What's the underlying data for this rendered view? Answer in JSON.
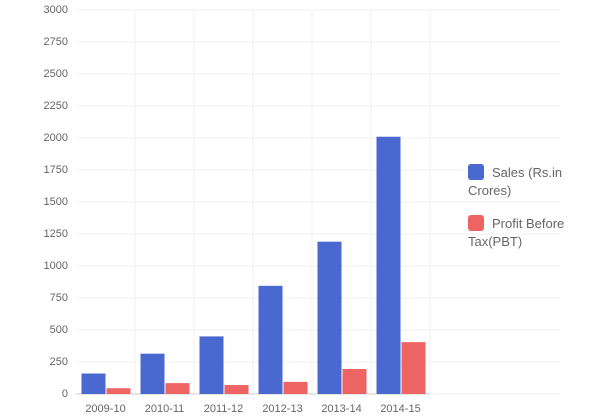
{
  "chart_data": {
    "type": "bar",
    "categories": [
      "2009-10",
      "2010-11",
      "2011-12",
      "2012-13",
      "2013-14",
      "2014-15"
    ],
    "series": [
      {
        "name": "Sales (Rs.in Crores)",
        "color": "#4a69d0",
        "values": [
          160,
          315,
          450,
          845,
          1190,
          2010
        ]
      },
      {
        "name": "Profit Before Tax(PBT)",
        "color": "#ee6462",
        "values": [
          45,
          85,
          70,
          95,
          195,
          405
        ]
      }
    ],
    "ylim": [
      0,
      3000
    ],
    "yticks": [
      0,
      250,
      500,
      750,
      1000,
      1250,
      1500,
      1750,
      2000,
      2250,
      2500,
      2750,
      3000
    ],
    "grid": true,
    "legend": "right"
  }
}
